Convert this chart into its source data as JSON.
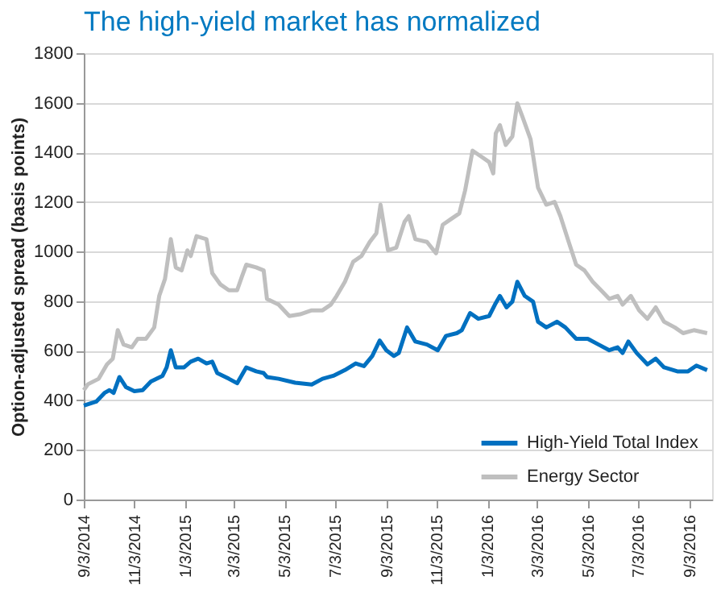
{
  "chart_data": {
    "type": "line",
    "title": "The high-yield market has normalized",
    "ylabel": "Option-adjusted spread (basis points)",
    "ylim": [
      0,
      1800
    ],
    "yticks": [
      0,
      200,
      400,
      600,
      800,
      1000,
      1200,
      1400,
      1600,
      1800
    ],
    "xlim": [
      "2014-09-03",
      "2016-09-30"
    ],
    "xticks": [
      {
        "value": "2014-09-03",
        "label": "9/3/2014"
      },
      {
        "value": "2014-11-03",
        "label": "11/3/2014"
      },
      {
        "value": "2015-01-03",
        "label": "1/3/2015"
      },
      {
        "value": "2015-03-03",
        "label": "3/3/2015"
      },
      {
        "value": "2015-05-03",
        "label": "5/3/2015"
      },
      {
        "value": "2015-07-03",
        "label": "7/3/2015"
      },
      {
        "value": "2015-09-03",
        "label": "9/3/2015"
      },
      {
        "value": "2015-11-03",
        "label": "11/3/2015"
      },
      {
        "value": "2016-01-03",
        "label": "1/3/2016"
      },
      {
        "value": "2016-03-03",
        "label": "3/3/2016"
      },
      {
        "value": "2016-05-03",
        "label": "5/3/2016"
      },
      {
        "value": "2016-07-03",
        "label": "7/3/2016"
      },
      {
        "value": "2016-09-03",
        "label": "9/3/2016"
      }
    ],
    "grid": "y",
    "legend": "bottom right",
    "marker": "none",
    "line_style": "solid",
    "series": [
      {
        "name": "High-Yield Total Index",
        "color": "#0070c0",
        "x": [
          "2014-09-03",
          "2014-09-18",
          "2014-09-28",
          "2014-10-04",
          "2014-10-09",
          "2014-10-16",
          "2014-10-24",
          "2014-11-03",
          "2014-11-13",
          "2014-11-23",
          "2014-12-07",
          "2014-12-12",
          "2014-12-17",
          "2014-12-23",
          "2015-01-02",
          "2015-01-10",
          "2015-01-19",
          "2015-01-29",
          "2015-02-05",
          "2015-02-11",
          "2015-02-25",
          "2015-03-07",
          "2015-03-18",
          "2015-03-30",
          "2015-04-08",
          "2015-04-12",
          "2015-04-26",
          "2015-05-16",
          "2015-06-05",
          "2015-06-18",
          "2015-07-01",
          "2015-07-15",
          "2015-07-28",
          "2015-08-07",
          "2015-08-17",
          "2015-08-26",
          "2015-09-03",
          "2015-09-12",
          "2015-09-18",
          "2015-09-28",
          "2015-10-08",
          "2015-10-22",
          "2015-11-04",
          "2015-11-14",
          "2015-11-27",
          "2015-12-03",
          "2015-12-13",
          "2015-12-23",
          "2016-01-05",
          "2016-01-12",
          "2016-01-18",
          "2016-01-26",
          "2016-02-02",
          "2016-02-08",
          "2016-02-17",
          "2016-02-27",
          "2016-03-04",
          "2016-03-14",
          "2016-03-27",
          "2016-04-06",
          "2016-04-19",
          "2016-05-03",
          "2016-05-16",
          "2016-05-29",
          "2016-06-08",
          "2016-06-14",
          "2016-06-21",
          "2016-07-01",
          "2016-07-14",
          "2016-07-24",
          "2016-08-03",
          "2016-08-19",
          "2016-09-01",
          "2016-09-11",
          "2016-09-24"
        ],
        "values": [
          379,
          395,
          430,
          441,
          430,
          494,
          453,
          437,
          441,
          476,
          499,
          533,
          602,
          533,
          533,
          556,
          568,
          549,
          556,
          510,
          487,
          469,
          533,
          517,
          510,
          494,
          487,
          471,
          464,
          487,
          499,
          522,
          549,
          538,
          579,
          641,
          602,
          579,
          591,
          694,
          637,
          625,
          602,
          660,
          671,
          683,
          752,
          729,
          740,
          786,
          821,
          775,
          798,
          878,
          821,
          798,
          717,
          694,
          717,
          694,
          648,
          648,
          625,
          602,
          614,
          591,
          637,
          591,
          545,
          568,
          533,
          517,
          517,
          540,
          522
        ]
      },
      {
        "name": "Energy Sector",
        "color": "#bfbfbf",
        "x": [
          "2014-09-03",
          "2014-09-08",
          "2014-09-21",
          "2014-10-01",
          "2014-10-08",
          "2014-10-14",
          "2014-10-21",
          "2014-10-31",
          "2014-11-07",
          "2014-11-17",
          "2014-11-27",
          "2014-12-03",
          "2014-12-10",
          "2014-12-17",
          "2014-12-23",
          "2014-12-30",
          "2015-01-06",
          "2015-01-10",
          "2015-01-17",
          "2015-01-29",
          "2015-02-05",
          "2015-02-15",
          "2015-02-25",
          "2015-03-07",
          "2015-03-13",
          "2015-03-18",
          "2015-03-30",
          "2015-04-08",
          "2015-04-12",
          "2015-04-26",
          "2015-05-09",
          "2015-05-22",
          "2015-06-05",
          "2015-06-18",
          "2015-06-28",
          "2015-07-05",
          "2015-07-15",
          "2015-07-25",
          "2015-08-04",
          "2015-08-14",
          "2015-08-22",
          "2015-08-27",
          "2015-09-05",
          "2015-09-15",
          "2015-09-25",
          "2015-09-30",
          "2015-10-08",
          "2015-10-22",
          "2015-11-02",
          "2015-11-10",
          "2015-11-20",
          "2015-11-30",
          "2015-12-07",
          "2015-12-16",
          "2015-12-26",
          "2016-01-05",
          "2016-01-10",
          "2016-01-13",
          "2016-01-18",
          "2016-01-25",
          "2016-02-02",
          "2016-02-08",
          "2016-02-14",
          "2016-02-24",
          "2016-03-04",
          "2016-03-14",
          "2016-03-24",
          "2016-03-31",
          "2016-04-10",
          "2016-04-19",
          "2016-04-29",
          "2016-05-09",
          "2016-05-19",
          "2016-05-29",
          "2016-06-08",
          "2016-06-14",
          "2016-06-24",
          "2016-07-04",
          "2016-07-14",
          "2016-07-24",
          "2016-08-03",
          "2016-08-16",
          "2016-08-26",
          "2016-09-08",
          "2016-09-24"
        ],
        "values": [
          441,
          465,
          487,
          545,
          568,
          683,
          625,
          614,
          648,
          648,
          694,
          821,
          890,
          1050,
          936,
          924,
          1005,
          982,
          1062,
          1050,
          913,
          867,
          844,
          844,
          901,
          947,
          936,
          924,
          809,
          786,
          740,
          747,
          763,
          763,
          786,
          821,
          878,
          959,
          982,
          1039,
          1074,
          1189,
          1005,
          1016,
          1120,
          1143,
          1050,
          1039,
          993,
          1108,
          1131,
          1154,
          1246,
          1407,
          1384,
          1361,
          1315,
          1476,
          1510,
          1430,
          1464,
          1598,
          1545,
          1453,
          1258,
          1189,
          1200,
          1143,
          1039,
          947,
          924,
          878,
          844,
          809,
          821,
          786,
          821,
          763,
          729,
          775,
          717,
          694,
          671,
          683,
          671
        ]
      }
    ]
  }
}
